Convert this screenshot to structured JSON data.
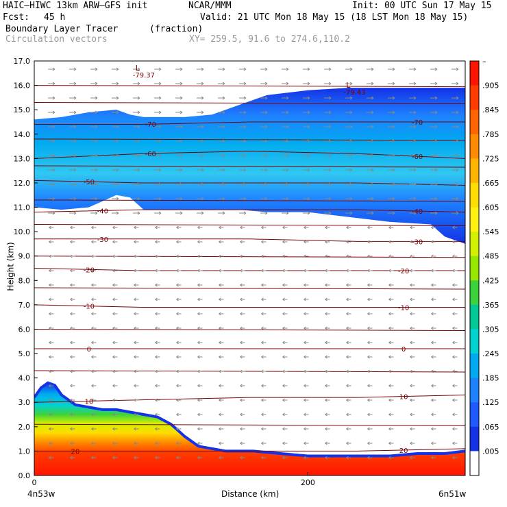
{
  "header": {
    "model": "HAIC–HIWC 13km ARW–GFS init",
    "org": "NCAR/MMM",
    "init": "Init: 00 UTC Sun 17 May 15",
    "fcst_label": "Fcst:",
    "fcst_value": "45 h",
    "valid": "Valid: 21 UTC Mon 18 May 15 (18 LST Mon 18 May 15)",
    "field": "Boundary Layer Tracer",
    "field_units": "(fraction)",
    "overlay": "Circulation vectors",
    "xy": "XY= 259.5, 91.6 to 274.6,110.2"
  },
  "colors": {
    "isotherm": "#7a0000",
    "vector": "#888888",
    "frame": "#000000"
  },
  "chart_data": {
    "type": "heatmap",
    "title": "Boundary Layer Tracer",
    "xlabel": "Distance (km)",
    "ylabel": "Height (km)",
    "xlim": [
      0,
      315
    ],
    "ylim": [
      0,
      17
    ],
    "x_ticks": [
      "0",
      "200"
    ],
    "x_end_labels": [
      "4n53w",
      "6n51w"
    ],
    "y_ticks": [
      "0.0",
      "1.0",
      "2.0",
      "3.0",
      "4.0",
      "5.0",
      "6.0",
      "7.0",
      "8.0",
      "9.0",
      "10.0",
      "11.0",
      "12.0",
      "13.0",
      "14.0",
      "15.0",
      "16.0",
      "17.0"
    ],
    "colorbar": {
      "labels": [
        "–",
        ".905",
        ".845",
        ".785",
        ".725",
        ".665",
        ".605",
        ".545",
        ".485",
        ".425",
        ".365",
        ".305",
        ".245",
        ".185",
        ".125",
        ".065",
        ".005"
      ],
      "colors": [
        "#ff1400",
        "#ff3c00",
        "#ff6400",
        "#ff8c00",
        "#ffb400",
        "#ffdc00",
        "#fff014",
        "#d2f000",
        "#96e600",
        "#3cd23c",
        "#00c896",
        "#00d2d2",
        "#00aaf0",
        "#1e82ff",
        "#1e5aff",
        "#1432e6",
        "#ffffff"
      ]
    },
    "upper_layer": {
      "x_km": [
        0,
        20,
        40,
        60,
        70,
        80,
        90,
        110,
        130,
        150,
        170,
        200,
        230,
        260,
        290,
        300,
        315
      ],
      "base_km": [
        11.0,
        10.9,
        11.0,
        11.5,
        11.4,
        10.9,
        10.9,
        10.9,
        10.9,
        10.9,
        10.8,
        10.8,
        10.6,
        10.4,
        10.3,
        9.8,
        9.5
      ],
      "top_km": [
        14.6,
        14.7,
        14.9,
        15.0,
        14.8,
        14.7,
        14.7,
        14.7,
        14.8,
        15.2,
        15.6,
        15.8,
        15.9,
        15.9,
        15.9,
        15.9,
        15.9
      ]
    },
    "lower_layer": {
      "x_km": [
        0,
        5,
        10,
        15,
        20,
        30,
        40,
        50,
        60,
        70,
        80,
        90,
        100,
        110,
        120,
        140,
        160,
        180,
        200,
        220,
        240,
        260,
        280,
        300,
        315
      ],
      "top_km": [
        3.2,
        3.6,
        3.8,
        3.7,
        3.3,
        2.9,
        2.8,
        2.7,
        2.7,
        2.6,
        2.5,
        2.4,
        2.1,
        1.6,
        1.2,
        1.0,
        1.0,
        0.9,
        0.8,
        0.8,
        0.8,
        0.8,
        0.9,
        0.9,
        1.0
      ]
    },
    "isotherms": [
      {
        "label": "-70",
        "y_km": [
          14.4,
          14.4,
          14.5,
          14.5,
          14.5
        ],
        "label_x_km": [
          85,
          280
        ]
      },
      {
        "label": "-60",
        "y_km": [
          13.0,
          13.2,
          13.3,
          13.2,
          13.0
        ],
        "label_x_km": [
          85,
          280
        ]
      },
      {
        "label": "-50",
        "y_km": [
          12.1,
          12.0,
          12.0,
          12.0,
          11.9
        ],
        "label_x_km": [
          40
        ]
      },
      {
        "label": "-40",
        "y_km": [
          10.8,
          10.9,
          10.9,
          10.9,
          10.8
        ],
        "label_x_km": [
          50,
          280
        ]
      },
      {
        "label": "-30",
        "y_km": [
          9.7,
          9.7,
          9.7,
          9.6,
          9.6
        ],
        "label_x_km": [
          50,
          280
        ]
      },
      {
        "label": "-20",
        "y_km": [
          8.5,
          8.4,
          8.4,
          8.4,
          8.4
        ],
        "label_x_km": [
          40,
          270
        ]
      },
      {
        "label": "-10",
        "y_km": [
          7.0,
          6.9,
          6.9,
          6.9,
          6.9
        ],
        "label_x_km": [
          40,
          270
        ]
      },
      {
        "label": "0",
        "y_km": [
          5.2,
          5.2,
          5.2,
          5.2,
          5.2
        ],
        "label_x_km": [
          40,
          270
        ]
      },
      {
        "label": "10",
        "y_km": [
          3.0,
          3.1,
          3.2,
          3.2,
          3.3
        ],
        "label_x_km": [
          40,
          270
        ]
      },
      {
        "label": "20",
        "y_km": [
          1.0,
          1.0,
          1.0,
          1.0,
          1.1
        ],
        "label_x_km": [
          30,
          270
        ]
      }
    ],
    "extra_contours_y_km": [
      16.0,
      15.3,
      13.8,
      12.7,
      11.3,
      10.3,
      9.0,
      7.7,
      6.0,
      4.3,
      2.1
    ],
    "lows": [
      {
        "label": "L",
        "value": "-79.37",
        "x_km": 76,
        "y_km": 16.6
      },
      {
        "label": "L",
        "value": "-79.43",
        "x_km": 230,
        "y_km": 15.9
      }
    ]
  }
}
